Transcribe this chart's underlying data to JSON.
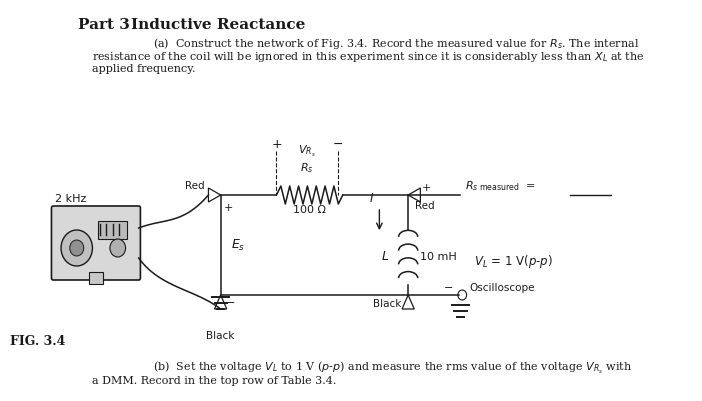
{
  "bg_color": "#ffffff",
  "line_color": "#1a1a1a",
  "title_part": "Part 3",
  "title_main": "Inductive Reactance",
  "para_a_1": "(a)  Construct the network of Fig. 3.4. Record the measured value for $R_s$. The internal",
  "para_a_2": "resistance of the coil will be ignored in this experiment since it is considerably less than $X_L$ at the",
  "para_a_3": "applied frequency.",
  "para_b_1": "(b)  Set the voltage $V_L$ to 1 V ($p$-$p$) and measure the rms value of the voltage $V_{R_s}$ with",
  "para_b_2": "a DMM. Record in the top row of Table 3.4.",
  "fig_label": "FIG. 3.4",
  "freq_label": "2 kHz",
  "Es_label": "$E_s$",
  "Rs_label": "$R_s$",
  "Rs_value": "100 Ω",
  "L_label": "$L$",
  "L_value": "10 mH",
  "VL_label": "$V_L$ = 1 V($p$-$p$)",
  "VRs_label": "$V_{R_s}$",
  "I_label": "$I$",
  "Red_left": "Red",
  "Red_right": "Red",
  "Black_left": "Black",
  "Black_right": "Black",
  "Rs_meas_label": "$R_{s \\text{ measured}}$",
  "osc_label": "Oscilloscope",
  "plus": "+",
  "minus": "−"
}
